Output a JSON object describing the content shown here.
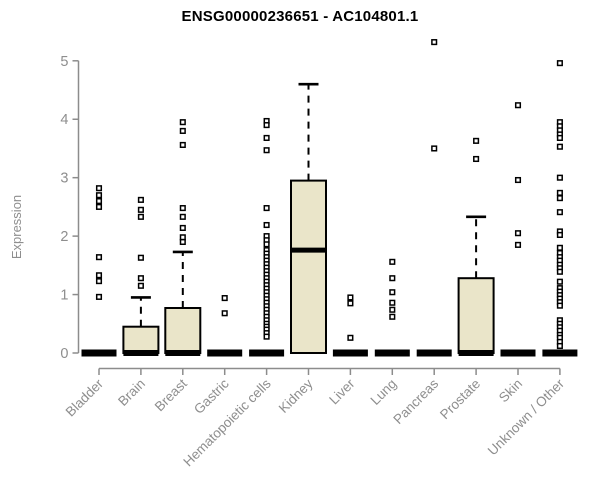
{
  "chart_data": {
    "type": "boxplot",
    "title": "ENSG00000236651 - AC104801.1",
    "ylabel": "Expression",
    "xlabel": "",
    "ylim": [
      0,
      5
    ],
    "yticks": [
      0,
      1,
      2,
      3,
      4,
      5
    ],
    "grid": false,
    "legend": "none",
    "colors": {
      "box_fill": "#EAE5C9",
      "box_stroke": "#000000",
      "median": "#000000",
      "whisker": "#000000",
      "outlier_fill": "#FFFFFF",
      "outlier_stroke": "#000000",
      "axis": "#8c8c8c",
      "tick_label": "#8e8e8e",
      "title": "#000000",
      "background": "#ffffff"
    },
    "categories": [
      "Bladder",
      "Brain",
      "Breast",
      "Gastric",
      "Hematopoietic cells",
      "Kidney",
      "Liver",
      "Lung",
      "Pancreas",
      "Prostate",
      "Skin",
      "Unknown / Other"
    ],
    "series": [
      {
        "name": "Bladder",
        "q1": 0,
        "median": 0,
        "q3": 0,
        "whisker_low": 0,
        "whisker_high": 0,
        "outliers": [
          2.82,
          2.7,
          2.6,
          2.5,
          1.64,
          1.33,
          1.23,
          0.96
        ]
      },
      {
        "name": "Brain",
        "q1": 0,
        "median": 0,
        "q3": 0.45,
        "whisker_low": 0,
        "whisker_high": 0.95,
        "outliers": [
          2.62,
          2.45,
          2.33,
          1.63,
          1.28,
          1.15
        ]
      },
      {
        "name": "Breast",
        "q1": 0,
        "median": 0,
        "q3": 0.77,
        "whisker_low": 0,
        "whisker_high": 1.73,
        "outliers": [
          3.95,
          3.8,
          3.56,
          2.48,
          2.33,
          2.14,
          1.98,
          1.9
        ]
      },
      {
        "name": "Gastric",
        "q1": 0,
        "median": 0,
        "q3": 0,
        "whisker_low": 0,
        "whisker_high": 0,
        "outliers": [
          0.94,
          0.68
        ]
      },
      {
        "name": "Hematopoietic cells",
        "q1": 0,
        "median": 0,
        "q3": 0,
        "whisker_low": 0,
        "whisker_high": 0,
        "outliers": [
          3.97,
          3.9,
          3.68,
          3.47,
          2.48,
          2.19,
          2.0,
          1.93,
          1.86,
          1.76,
          1.7,
          1.64,
          1.58,
          1.52,
          1.46,
          1.4,
          1.34,
          1.28,
          1.22,
          1.16,
          1.1,
          1.04,
          0.98,
          0.92,
          0.86,
          0.8,
          0.74,
          0.68,
          0.62,
          0.56,
          0.5,
          0.45,
          0.4,
          0.34,
          0.28
        ]
      },
      {
        "name": "Kidney",
        "q1": 0,
        "median": 1.76,
        "q3": 2.95,
        "whisker_low": 0,
        "whisker_high": 4.6,
        "outliers": []
      },
      {
        "name": "Liver",
        "q1": 0,
        "median": 0,
        "q3": 0,
        "whisker_low": 0,
        "whisker_high": 0,
        "outliers": [
          0.95,
          0.85,
          0.26
        ]
      },
      {
        "name": "Lung",
        "q1": 0,
        "median": 0,
        "q3": 0,
        "whisker_low": 0,
        "whisker_high": 0,
        "outliers": [
          1.56,
          1.28,
          1.04,
          0.86,
          0.74,
          0.62
        ]
      },
      {
        "name": "Pancreas",
        "q1": 0,
        "median": 0,
        "q3": 0,
        "whisker_low": 0,
        "whisker_high": 0,
        "outliers": [
          5.32,
          3.5
        ]
      },
      {
        "name": "Prostate",
        "q1": 0,
        "median": 0,
        "q3": 1.28,
        "whisker_low": 0,
        "whisker_high": 2.33,
        "outliers": [
          3.63,
          3.32
        ]
      },
      {
        "name": "Skin",
        "q1": 0,
        "median": 0,
        "q3": 0,
        "whisker_low": 0,
        "whisker_high": 0,
        "outliers": [
          4.24,
          2.96,
          2.05,
          1.85
        ]
      },
      {
        "name": "Unknown / Other",
        "q1": 0,
        "median": 0,
        "q3": 0,
        "whisker_low": 0,
        "whisker_high": 0,
        "outliers": [
          4.96,
          3.95,
          3.88,
          3.81,
          3.74,
          3.68,
          3.53,
          3.0,
          2.74,
          2.65,
          2.41,
          2.08,
          2.02,
          1.8,
          1.71,
          1.64,
          1.58,
          1.51,
          1.45,
          1.39,
          1.22,
          1.11,
          1.05,
          0.99,
          0.93,
          0.87,
          0.81,
          0.56,
          0.5,
          0.44,
          0.38,
          0.31,
          0.26,
          0.19,
          0.12
        ]
      }
    ]
  }
}
